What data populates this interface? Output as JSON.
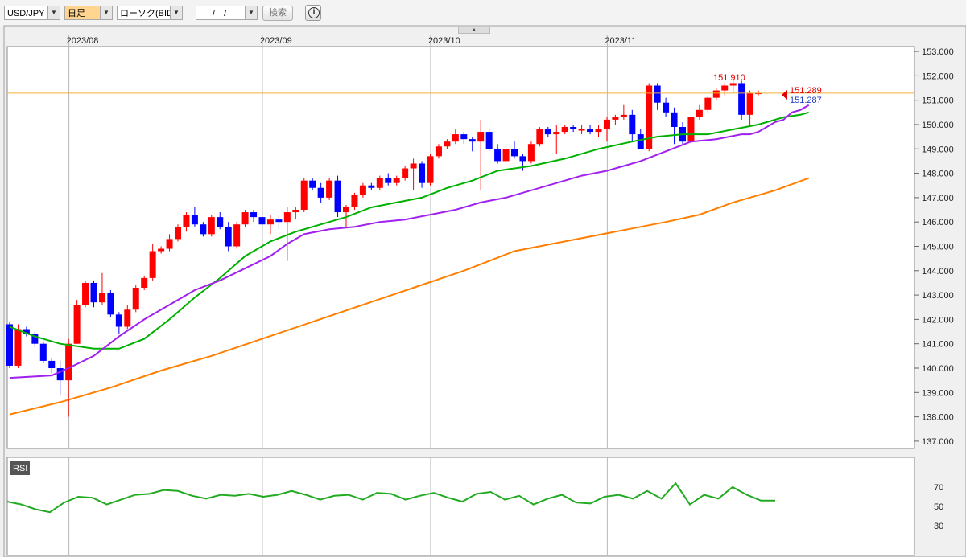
{
  "toolbar": {
    "symbol": "USD/JPY",
    "period": "日足",
    "chart_type": "ローソク(BID)",
    "date_value": "/  /",
    "search_label": "検索"
  },
  "chart_data": {
    "type": "candlestick",
    "x_labels": [
      "2023/08",
      "2023/09",
      "2023/10",
      "2023/11"
    ],
    "y_ticks": [
      "153.000",
      "152.000",
      "151.000",
      "150.000",
      "149.000",
      "148.000",
      "147.000",
      "146.000",
      "145.000",
      "144.000",
      "143.000",
      "142.000",
      "141.000",
      "140.000",
      "139.000",
      "138.000",
      "137.000"
    ],
    "ylim": [
      136.7,
      153.2
    ],
    "grid": true,
    "colors": {
      "up": "#ff0000",
      "down": "#0000ff",
      "ma_short": "#a020f0",
      "ma_mid": "#00b000",
      "ma_long": "#ff7f00",
      "price_line": "#f5b030",
      "rsi": "#22aa22"
    },
    "high_label": "151.910",
    "ask_label": "151.289",
    "bid_label": "151.287",
    "current_price": 151.289,
    "month_start_index": [
      8,
      31,
      51,
      72
    ],
    "candles": [
      [
        141.8,
        141.9,
        140.0,
        140.1
      ],
      [
        140.1,
        141.8,
        140.0,
        141.6
      ],
      [
        141.6,
        141.7,
        141.3,
        141.4
      ],
      [
        141.4,
        141.5,
        140.9,
        141.0
      ],
      [
        141.0,
        141.1,
        140.2,
        140.3
      ],
      [
        140.3,
        140.4,
        139.8,
        140.0
      ],
      [
        140.0,
        140.3,
        138.9,
        139.5
      ],
      [
        139.5,
        141.2,
        138.0,
        141.0
      ],
      [
        141.0,
        142.8,
        141.0,
        142.6
      ],
      [
        142.6,
        143.6,
        142.5,
        143.5
      ],
      [
        143.5,
        143.6,
        142.5,
        142.7
      ],
      [
        142.7,
        143.9,
        142.6,
        143.1
      ],
      [
        143.1,
        143.2,
        142.1,
        142.2
      ],
      [
        142.2,
        142.3,
        141.4,
        141.7
      ],
      [
        141.7,
        142.6,
        141.6,
        142.4
      ],
      [
        142.4,
        143.4,
        142.3,
        143.3
      ],
      [
        143.3,
        143.8,
        143.2,
        143.7
      ],
      [
        143.7,
        145.1,
        143.6,
        144.8
      ],
      [
        144.8,
        145.0,
        144.7,
        144.9
      ],
      [
        144.9,
        145.5,
        144.8,
        145.3
      ],
      [
        145.3,
        145.9,
        145.2,
        145.8
      ],
      [
        145.8,
        146.4,
        145.6,
        146.3
      ],
      [
        146.3,
        146.6,
        145.8,
        145.9
      ],
      [
        145.9,
        146.0,
        145.4,
        145.5
      ],
      [
        145.5,
        146.3,
        145.4,
        146.2
      ],
      [
        146.2,
        146.4,
        145.7,
        145.8
      ],
      [
        145.8,
        146.0,
        144.8,
        145.0
      ],
      [
        145.0,
        146.0,
        144.9,
        145.9
      ],
      [
        145.9,
        146.5,
        145.8,
        146.4
      ],
      [
        146.4,
        146.5,
        146.0,
        146.2
      ],
      [
        146.2,
        147.3,
        145.8,
        145.9
      ],
      [
        145.9,
        146.3,
        145.5,
        146.1
      ],
      [
        146.1,
        146.3,
        145.7,
        146.0
      ],
      [
        146.0,
        146.6,
        144.4,
        146.4
      ],
      [
        146.4,
        146.6,
        146.1,
        146.5
      ],
      [
        146.5,
        147.8,
        146.4,
        147.7
      ],
      [
        147.7,
        147.8,
        147.3,
        147.4
      ],
      [
        147.4,
        147.6,
        146.8,
        147.0
      ],
      [
        147.0,
        147.8,
        146.9,
        147.7
      ],
      [
        147.7,
        147.9,
        146.2,
        146.4
      ],
      [
        146.4,
        146.7,
        145.8,
        146.6
      ],
      [
        146.6,
        147.2,
        146.5,
        147.1
      ],
      [
        147.1,
        147.6,
        147.0,
        147.5
      ],
      [
        147.5,
        147.6,
        147.3,
        147.4
      ],
      [
        147.4,
        147.9,
        147.3,
        147.8
      ],
      [
        147.8,
        148.0,
        147.5,
        147.6
      ],
      [
        147.6,
        147.9,
        147.5,
        147.8
      ],
      [
        147.8,
        148.3,
        147.7,
        148.2
      ],
      [
        148.2,
        148.6,
        147.3,
        148.4
      ],
      [
        148.4,
        148.5,
        147.4,
        147.6
      ],
      [
        147.6,
        148.8,
        147.5,
        148.7
      ],
      [
        148.7,
        149.2,
        148.6,
        149.1
      ],
      [
        149.1,
        149.4,
        149.0,
        149.3
      ],
      [
        149.3,
        149.8,
        149.2,
        149.6
      ],
      [
        149.6,
        149.7,
        149.2,
        149.4
      ],
      [
        149.4,
        149.5,
        148.9,
        149.3
      ],
      [
        149.3,
        150.2,
        147.3,
        149.7
      ],
      [
        149.7,
        149.8,
        148.9,
        149.0
      ],
      [
        149.0,
        149.2,
        148.4,
        148.5
      ],
      [
        148.5,
        149.1,
        148.4,
        149.0
      ],
      [
        149.0,
        149.3,
        148.6,
        148.7
      ],
      [
        148.7,
        148.8,
        148.1,
        148.5
      ],
      [
        148.5,
        149.3,
        148.4,
        149.2
      ],
      [
        149.2,
        149.9,
        149.1,
        149.8
      ],
      [
        149.8,
        149.9,
        149.5,
        149.6
      ],
      [
        149.6,
        150.0,
        148.8,
        149.7
      ],
      [
        149.7,
        150.0,
        149.6,
        149.9
      ],
      [
        149.9,
        150.0,
        149.7,
        149.8
      ],
      [
        149.8,
        150.0,
        149.6,
        149.8
      ],
      [
        149.8,
        150.0,
        149.6,
        149.7
      ],
      [
        149.7,
        150.0,
        149.5,
        149.8
      ],
      [
        149.8,
        150.3,
        149.3,
        150.2
      ],
      [
        150.2,
        150.4,
        150.0,
        150.3
      ],
      [
        150.3,
        150.8,
        150.2,
        150.4
      ],
      [
        150.4,
        150.6,
        149.3,
        149.6
      ],
      [
        149.6,
        149.8,
        149.0,
        149.0
      ],
      [
        149.0,
        151.7,
        148.9,
        151.6
      ],
      [
        151.6,
        151.7,
        150.6,
        150.9
      ],
      [
        150.9,
        151.1,
        150.3,
        150.5
      ],
      [
        150.5,
        150.7,
        149.2,
        149.9
      ],
      [
        149.9,
        150.1,
        149.2,
        149.3
      ],
      [
        149.3,
        150.4,
        149.2,
        150.3
      ],
      [
        150.3,
        150.8,
        150.2,
        150.6
      ],
      [
        150.6,
        151.2,
        150.5,
        151.1
      ],
      [
        151.1,
        151.5,
        151.0,
        151.4
      ],
      [
        151.4,
        151.7,
        151.2,
        151.6
      ],
      [
        151.6,
        151.9,
        151.3,
        151.7
      ],
      [
        151.7,
        151.8,
        150.2,
        150.4
      ],
      [
        150.4,
        151.4,
        150.0,
        151.3
      ],
      [
        151.3,
        151.4,
        151.2,
        151.3
      ]
    ],
    "ma_short": [
      139.6,
      139.7,
      140.0,
      140.5,
      141.3,
      142.0,
      142.6,
      143.2,
      143.6,
      144.1,
      144.6,
      145.1,
      145.5,
      145.7,
      145.8,
      146.0,
      146.1,
      146.3,
      146.5,
      146.8,
      147.0,
      147.3,
      147.6,
      147.9,
      148.1,
      148.3,
      148.5,
      148.9,
      149.3,
      149.4,
      149.6,
      149.6,
      149.7,
      149.9,
      150.1,
      150.2,
      150.5,
      150.6,
      150.8
    ],
    "ma_short_x": [
      0,
      5,
      7,
      10,
      13,
      16,
      19,
      22,
      25,
      28,
      31,
      33,
      35,
      38,
      41,
      44,
      47,
      50,
      53,
      56,
      59,
      62,
      65,
      68,
      71,
      73,
      75,
      78,
      81,
      84,
      87,
      88,
      89,
      90,
      91,
      92,
      93,
      94,
      95
    ],
    "ma_mid": [
      141.7,
      141.3,
      141.0,
      140.8,
      140.8,
      141.2,
      142.0,
      142.9,
      143.7,
      144.6,
      145.2,
      145.6,
      145.9,
      146.2,
      146.6,
      146.8,
      147.0,
      147.4,
      147.7,
      148.1,
      148.3,
      148.6,
      149.0,
      149.3,
      149.5,
      149.6,
      149.6,
      149.8,
      150.0,
      150.3,
      150.4,
      150.5
    ],
    "ma_mid_x": [
      0,
      3,
      6,
      10,
      13,
      16,
      19,
      22,
      25,
      28,
      31,
      34,
      37,
      40,
      43,
      46,
      49,
      52,
      55,
      58,
      62,
      66,
      70,
      74,
      77,
      80,
      83,
      86,
      89,
      92,
      94,
      95
    ],
    "ma_long": [
      138.1,
      138.6,
      139.2,
      139.9,
      140.5,
      141.2,
      141.9,
      142.6,
      143.3,
      144.0,
      144.8,
      145.2,
      145.6,
      146.0,
      146.3,
      146.8,
      147.3,
      147.8
    ],
    "ma_long_x": [
      0,
      6,
      12,
      18,
      24,
      30,
      36,
      42,
      48,
      54,
      60,
      66,
      72,
      78,
      82,
      86,
      91,
      95
    ],
    "rsi_ticks": [
      "70",
      "50",
      "30"
    ],
    "rsi_label": "RSI",
    "rsi": [
      55,
      52,
      47,
      44,
      54,
      60,
      59,
      52,
      57,
      62,
      63,
      67,
      66,
      61,
      58,
      62,
      61,
      63,
      60,
      62,
      66,
      62,
      57,
      61,
      62,
      57,
      64,
      63,
      57,
      61,
      64,
      59,
      55,
      63,
      65,
      57,
      61,
      52,
      58,
      62,
      54,
      53,
      60,
      62,
      58,
      66,
      58,
      74,
      52,
      62,
      58,
      70,
      62,
      56,
      56
    ]
  }
}
